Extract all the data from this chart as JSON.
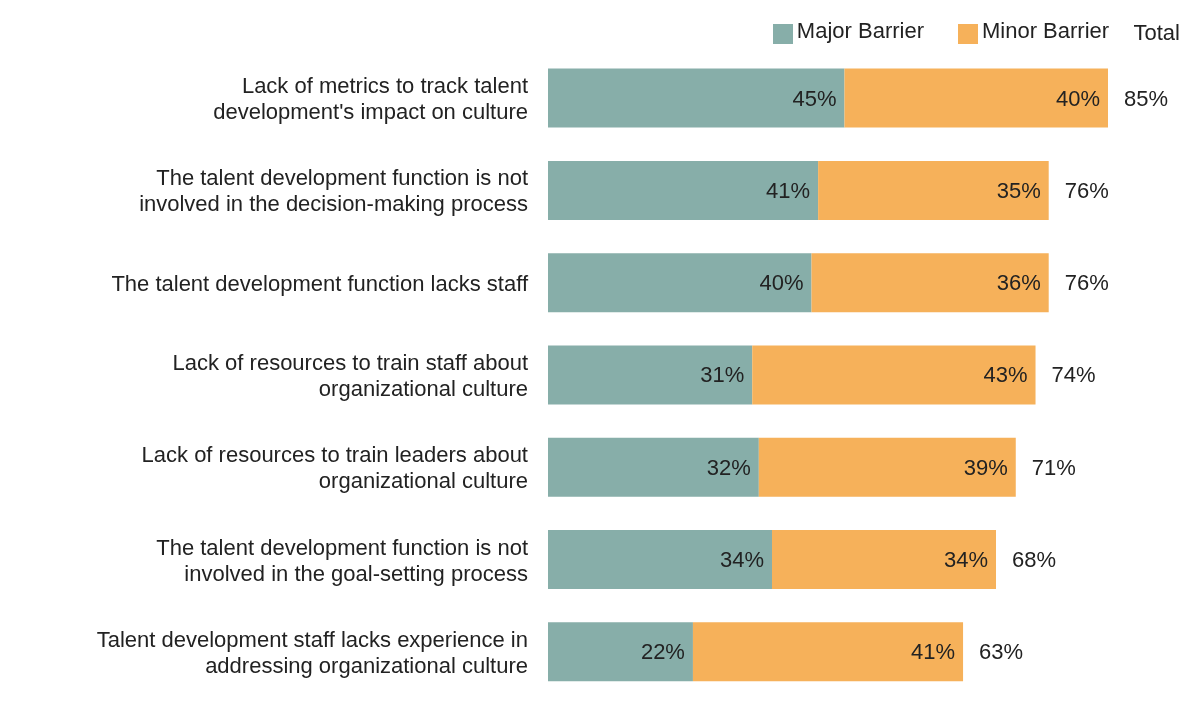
{
  "chart_data": {
    "type": "bar",
    "orientation": "horizontal",
    "stacked": true,
    "legend": "top",
    "categories": [
      "Lack of metrics to track talent development's impact on culture",
      "The talent development function is not involved in the decision-making process",
      "The talent development function lacks staff",
      "Lack of resources to train staff about organizational culture",
      "Lack of resources to train leaders about organizational culture",
      "The talent development function is not involved in the goal-setting process",
      "Talent development staff lacks experience in addressing organizational culture"
    ],
    "series": [
      {
        "name": "Major Barrier",
        "color": "#87aea9",
        "values": [
          45,
          41,
          40,
          31,
          32,
          34,
          22
        ],
        "value_labels": [
          "45%",
          "41%",
          "40%",
          "31%",
          "32%",
          "34%",
          "22%"
        ]
      },
      {
        "name": "Minor Barrier",
        "color": "#f6b15a",
        "values": [
          40,
          35,
          36,
          43,
          39,
          34,
          41
        ],
        "value_labels": [
          "40%",
          "35%",
          "36%",
          "43%",
          "39%",
          "34%",
          "41%"
        ]
      }
    ],
    "totals": [
      "85%",
      "76%",
      "76%",
      "74%",
      "71%",
      "68%",
      "63%"
    ],
    "annotations": [
      "Total"
    ]
  }
}
